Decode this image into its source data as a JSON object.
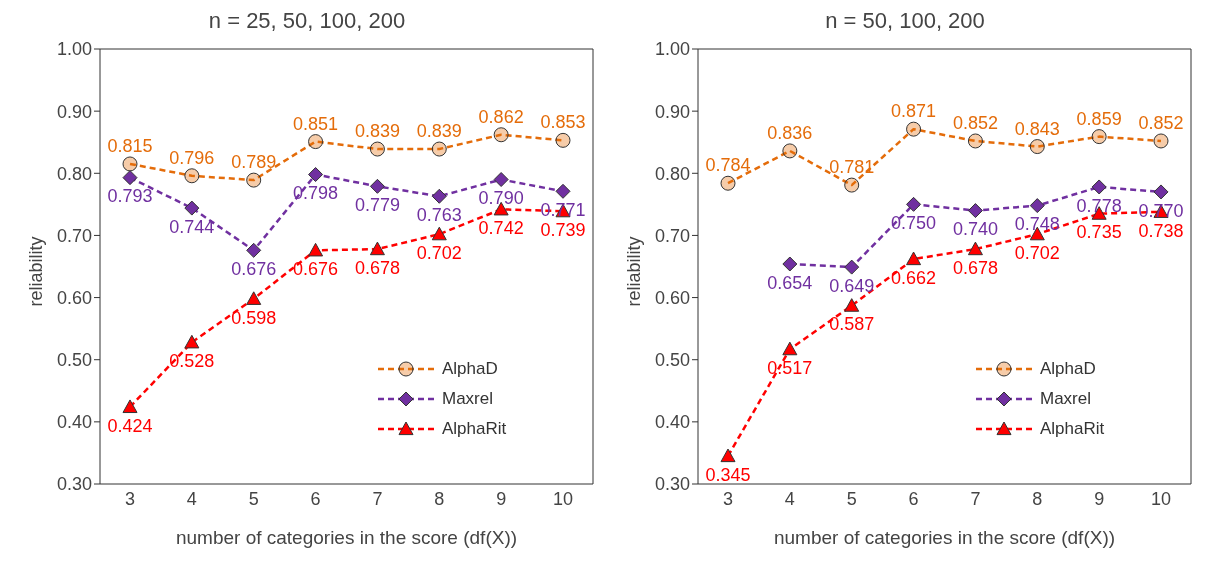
{
  "chart_data": [
    {
      "type": "line",
      "title": "n = 25, 50, 100, 200",
      "xlabel": "number of categories in the score (df(X))",
      "ylabel": "reliability",
      "categories": [
        "3",
        "4",
        "5",
        "6",
        "7",
        "8",
        "9",
        "10"
      ],
      "series": [
        {
          "name": "AlphaD",
          "color": "#e46c0a",
          "marker": "circle",
          "values": [
            0.815,
            0.796,
            0.789,
            0.851,
            0.839,
            0.839,
            0.862,
            0.853
          ],
          "value_labels": [
            "0.815",
            "0.796",
            "0.789",
            "0.851",
            "0.839",
            "0.839",
            "0.862",
            "0.853"
          ]
        },
        {
          "name": "Maxrel",
          "color": "#7030a0",
          "marker": "diamond",
          "values": [
            0.793,
            0.744,
            0.676,
            0.798,
            0.779,
            0.763,
            0.79,
            0.771
          ],
          "value_labels": [
            "0.793",
            "0.744",
            "0.676",
            "0.798",
            "0.779",
            "0.763",
            "0.790",
            "0.771"
          ]
        },
        {
          "name": "AlphaRit",
          "color": "#ff0000",
          "marker": "triangle",
          "values": [
            0.424,
            0.528,
            0.598,
            0.676,
            0.678,
            0.702,
            0.742,
            0.739
          ],
          "value_labels": [
            "0.424",
            "0.528",
            "0.598",
            "0.676",
            "0.678",
            "0.702",
            "0.742",
            "0.739"
          ]
        }
      ],
      "ylim": [
        0.3,
        1.0
      ],
      "yticks": [
        {
          "value": 0.3,
          "label": "0.30"
        },
        {
          "value": 0.4,
          "label": "0.40"
        },
        {
          "value": 0.5,
          "label": "0.50"
        },
        {
          "value": 0.6,
          "label": "0.60"
        },
        {
          "value": 0.7,
          "label": "0.70"
        },
        {
          "value": 0.8,
          "label": "0.80"
        },
        {
          "value": 0.9,
          "label": "0.90"
        },
        {
          "value": 1.0,
          "label": "1.00"
        }
      ],
      "grid": false,
      "legend": "bottom right",
      "line_style": "dashed"
    },
    {
      "type": "line",
      "title": "n = 50, 100, 200",
      "xlabel": "number of categories in the score (df(X))",
      "ylabel": "reliability",
      "categories": [
        "3",
        "4",
        "5",
        "6",
        "7",
        "8",
        "9",
        "10"
      ],
      "series": [
        {
          "name": "AlphaD",
          "color": "#e46c0a",
          "marker": "circle",
          "values": [
            0.784,
            0.836,
            0.781,
            0.871,
            0.852,
            0.843,
            0.859,
            0.852
          ],
          "value_labels": [
            "0.784",
            "0.836",
            "0.781",
            "0.871",
            "0.852",
            "0.843",
            "0.859",
            "0.852"
          ]
        },
        {
          "name": "Maxrel",
          "color": "#7030a0",
          "marker": "diamond",
          "values": [
            null,
            0.654,
            0.649,
            0.75,
            0.74,
            0.748,
            0.778,
            0.77
          ],
          "value_labels": [
            null,
            "0.654",
            "0.649",
            "0.750",
            "0.740",
            "0.748",
            "0.778",
            "0.770"
          ]
        },
        {
          "name": "AlphaRit",
          "color": "#ff0000",
          "marker": "triangle",
          "values": [
            0.345,
            0.517,
            0.587,
            0.662,
            0.678,
            0.702,
            0.735,
            0.738
          ],
          "value_labels": [
            "0.345",
            "0.517",
            "0.587",
            "0.662",
            "0.678",
            "0.702",
            "0.735",
            "0.738"
          ]
        }
      ],
      "ylim": [
        0.3,
        1.0
      ],
      "yticks": [
        {
          "value": 0.3,
          "label": "0.30"
        },
        {
          "value": 0.4,
          "label": "0.40"
        },
        {
          "value": 0.5,
          "label": "0.50"
        },
        {
          "value": 0.6,
          "label": "0.60"
        },
        {
          "value": 0.7,
          "label": "0.70"
        },
        {
          "value": 0.8,
          "label": "0.80"
        },
        {
          "value": 0.9,
          "label": "0.90"
        },
        {
          "value": 1.0,
          "label": "1.00"
        }
      ],
      "grid": false,
      "legend": "bottom right",
      "line_style": "dashed"
    }
  ]
}
